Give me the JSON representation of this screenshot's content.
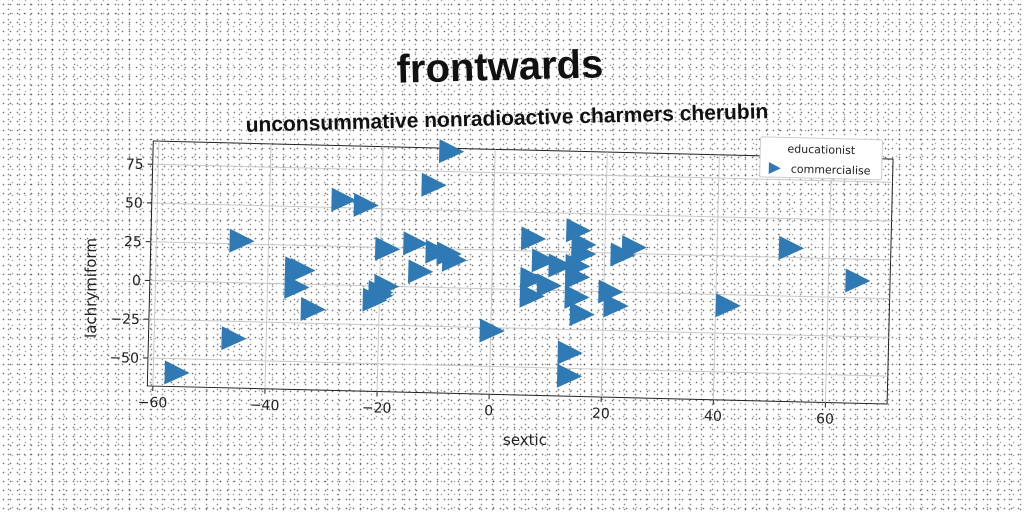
{
  "chart_data": {
    "type": "scatter",
    "title": "frontwards",
    "subtitle": "unconsummative nonradioactive charmers cherubin",
    "xlabel": "sextic",
    "ylabel": "lachrymiform",
    "xlim": [
      -61,
      71
    ],
    "ylim": [
      -68,
      90
    ],
    "xticks": [
      -60,
      -40,
      -20,
      0,
      20,
      40,
      60
    ],
    "yticks": [
      -50,
      -25,
      0,
      25,
      50,
      75
    ],
    "grid": true,
    "legend": {
      "title": "educationist",
      "placement": "top-right",
      "entries": [
        "commercialise"
      ]
    },
    "marker": "triangle-right",
    "color": "#2f7ab5",
    "series": [
      {
        "name": "commercialise",
        "points": [
          [
            -56,
            -59
          ],
          [
            -46,
            -36
          ],
          [
            -45,
            27
          ],
          [
            -35,
            10
          ],
          [
            -34,
            9
          ],
          [
            -35,
            -2
          ],
          [
            -32,
            -16
          ],
          [
            -27,
            55
          ],
          [
            -23,
            52
          ],
          [
            -21,
            -9
          ],
          [
            -20,
            -6
          ],
          [
            -20,
            -4
          ],
          [
            -19,
            0
          ],
          [
            -19,
            24
          ],
          [
            -14,
            28
          ],
          [
            -13,
            10
          ],
          [
            -11,
            66
          ],
          [
            -10,
            23
          ],
          [
            -8,
            22
          ],
          [
            -7,
            18
          ],
          [
            -8,
            88
          ],
          [
            0,
            -27
          ],
          [
            7,
            33
          ],
          [
            7,
            7
          ],
          [
            7,
            -4
          ],
          [
            9,
            19
          ],
          [
            10,
            3
          ],
          [
            12,
            16
          ],
          [
            15,
            39
          ],
          [
            15,
            9
          ],
          [
            15,
            -4
          ],
          [
            15,
            16
          ],
          [
            16,
            30
          ],
          [
            16,
            24
          ],
          [
            16,
            -15
          ],
          [
            14,
            -40
          ],
          [
            14,
            -55
          ],
          [
            21,
            0
          ],
          [
            22,
            -9
          ],
          [
            23,
            24
          ],
          [
            25,
            29
          ],
          [
            42,
            -7
          ],
          [
            53,
            31
          ],
          [
            65,
            11
          ]
        ]
      }
    ]
  }
}
